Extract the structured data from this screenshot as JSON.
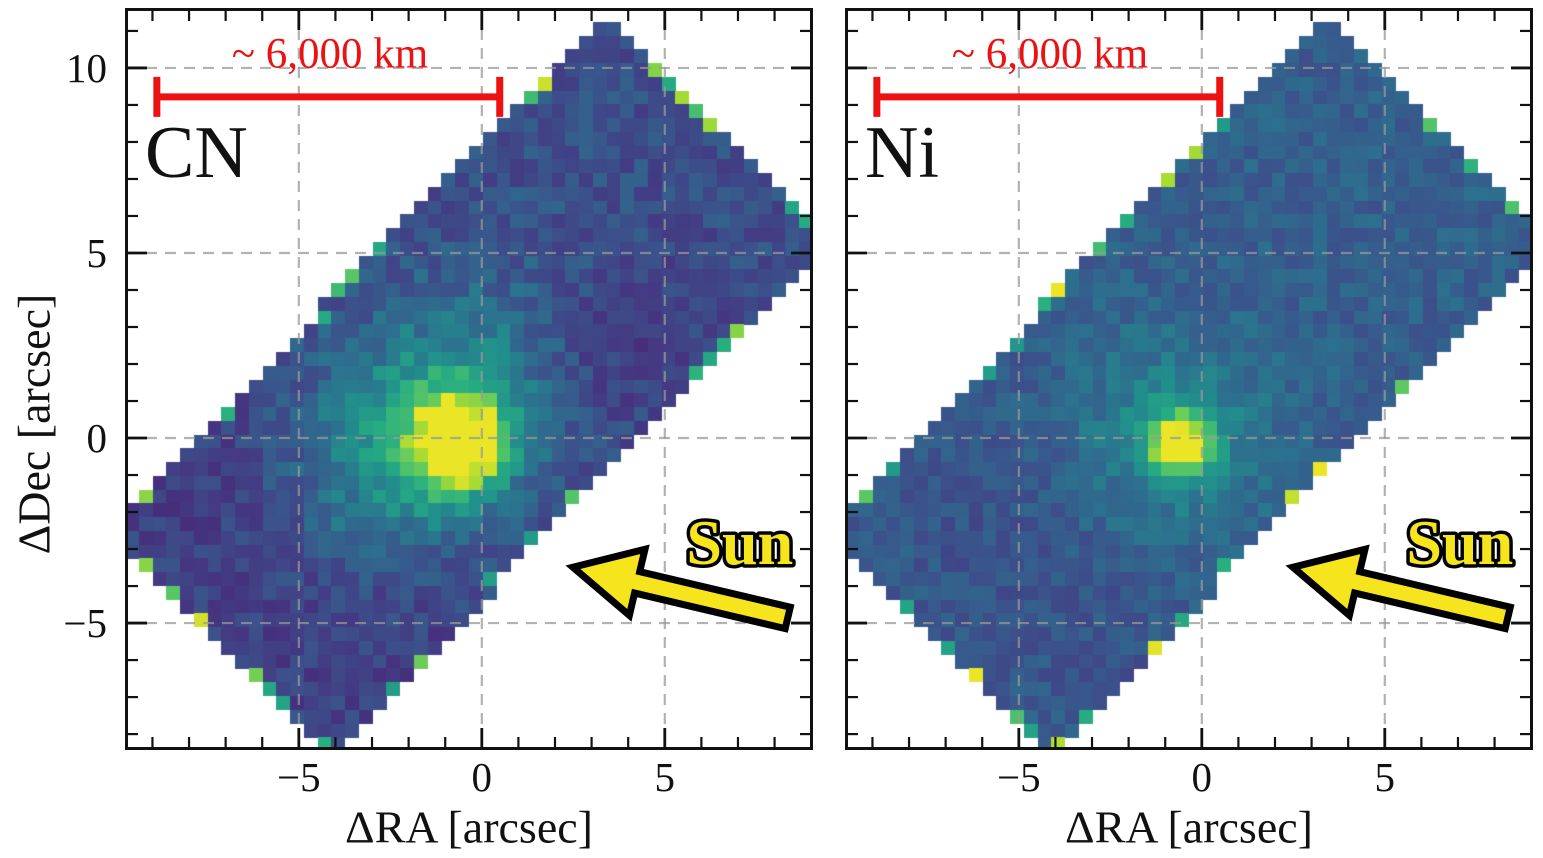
{
  "figure": {
    "description": "Two-panel comet coma emission maps (CN and Ni) with Sun direction arrows and 6,000 km scale bars",
    "background": "#ffffff"
  },
  "colors": {
    "frame": "#111111",
    "grid": "#999999",
    "scalebar_red": "#ee1111",
    "sun_yellow": "#f6e41c",
    "sun_outline": "#000000",
    "label_black": "#111111",
    "viridis_stops": [
      0.0,
      0.13,
      0.25,
      0.38,
      0.5,
      0.62,
      0.75,
      0.85,
      0.93,
      1.0
    ],
    "viridis_hex": [
      "#440154",
      "#471d6c",
      "#453581",
      "#3b528b",
      "#2c718e",
      "#21918c",
      "#27ad81",
      "#5cc863",
      "#aadc32",
      "#fde725"
    ]
  },
  "chart_data": [
    {
      "type": "heatmap",
      "title": "CN",
      "xlabel": "ΔRA [arcsec]",
      "ylabel": "ΔDec [arcsec]",
      "xlim": [
        -9.75,
        9.05
      ],
      "ylim": [
        -8.43,
        11.62
      ],
      "xticks": [
        -5,
        0,
        5
      ],
      "yticks": [
        10,
        5,
        0,
        -5
      ],
      "xtick_labels": [
        "−5",
        "0",
        "5"
      ],
      "ytick_labels": [
        "10",
        "5",
        "0",
        "−5"
      ],
      "show_ytick_labels": true,
      "minor_tick_step": 1,
      "grid": true,
      "grid_x": [
        -5,
        0,
        5
      ],
      "grid_y": [
        -5,
        0,
        5,
        10
      ],
      "legend": "none",
      "colormap": "viridis",
      "footprint": {
        "center": [
          -0.35,
          1.45
        ],
        "angle_deg": 45.6,
        "half_length": 9.8,
        "half_width": 4.35,
        "cell_arcsec": 0.376
      },
      "peak": {
        "center": [
          -0.6,
          -0.15
        ],
        "core_amp": 0.62,
        "core_sigma": 0.95,
        "halo_amp": 0.36,
        "halo_sigma_u": 2.9,
        "halo_sigma_v": 1.9,
        "halo_offset_uv": [
          -0.6,
          1.0
        ]
      },
      "field": {
        "base": 0.36,
        "noise": 0.17,
        "seed": 7,
        "dark_spots": [
          {
            "uv": [
              -6.8,
              0.0
            ],
            "sigma": [
              2.6,
              5.0
            ],
            "amp": -0.1
          },
          {
            "uv": [
              3.4,
              -2.1
            ],
            "sigma": [
              1.9,
              1.6
            ],
            "amp": -0.09
          }
        ],
        "edge_bright": {
          "prob": 0.3,
          "min": 0.66,
          "range": 0.32
        }
      },
      "annotations": {
        "scalebar": {
          "label": "~ 6,000 km",
          "x_start": -8.88,
          "x_end": 0.49,
          "y": 9.22,
          "label_pos": [
            -4.15,
            10.38
          ]
        },
        "panel_label": {
          "text": "CN",
          "pos": [
            -9.26,
            6.7
          ]
        },
        "sun": {
          "text": "Sun",
          "text_pos": [
            7.05,
            -2.81
          ],
          "arrow_tail": [
            8.36,
            -4.86
          ],
          "arrow_tip": [
            2.49,
            -3.49
          ]
        }
      }
    },
    {
      "type": "heatmap",
      "title": "Ni",
      "xlabel": "ΔRA [arcsec]",
      "ylabel": "ΔDec [arcsec]",
      "xlim": [
        -9.75,
        9.05
      ],
      "ylim": [
        -8.43,
        11.62
      ],
      "xticks": [
        -5,
        0,
        5
      ],
      "yticks": [
        10,
        5,
        0,
        -5
      ],
      "xtick_labels": [
        "−5",
        "0",
        "5"
      ],
      "ytick_labels": [
        "10",
        "5",
        "0",
        "−5"
      ],
      "show_ytick_labels": false,
      "minor_tick_step": 1,
      "grid": true,
      "grid_x": [
        -5,
        0,
        5
      ],
      "grid_y": [
        -5,
        0,
        5,
        10
      ],
      "legend": "none",
      "colormap": "viridis",
      "footprint": {
        "center": [
          -0.35,
          1.45
        ],
        "angle_deg": 45.6,
        "half_length": 9.8,
        "half_width": 4.35,
        "cell_arcsec": 0.376
      },
      "peak": {
        "center": [
          -0.6,
          -0.15
        ],
        "core_amp": 0.56,
        "core_sigma": 0.62,
        "halo_amp": 0.17,
        "halo_sigma_u": 1.9,
        "halo_sigma_v": 1.9,
        "halo_offset_uv": [
          0.0,
          0.3
        ]
      },
      "field": {
        "base": 0.43,
        "noise": 0.13,
        "seed": 13,
        "dark_spots": [
          {
            "uv": [
              -6.8,
              0.0
            ],
            "sigma": [
              2.8,
              5.0
            ],
            "amp": -0.05
          }
        ],
        "edge_bright": {
          "prob": 0.32,
          "min": 0.64,
          "range": 0.36
        }
      },
      "annotations": {
        "scalebar": {
          "label": "~ 6,000 km",
          "x_start": -8.88,
          "x_end": 0.49,
          "y": 9.22,
          "label_pos": [
            -4.15,
            10.38
          ]
        },
        "panel_label": {
          "text": "Ni",
          "pos": [
            -9.26,
            6.7
          ]
        },
        "sun": {
          "text": "Sun",
          "text_pos": [
            7.05,
            -2.81
          ],
          "arrow_tail": [
            8.36,
            -4.86
          ],
          "arrow_tip": [
            2.49,
            -3.49
          ]
        }
      }
    }
  ],
  "layout_labels": {
    "left_panel": "CN coma map",
    "right_panel": "Ni coma map"
  }
}
